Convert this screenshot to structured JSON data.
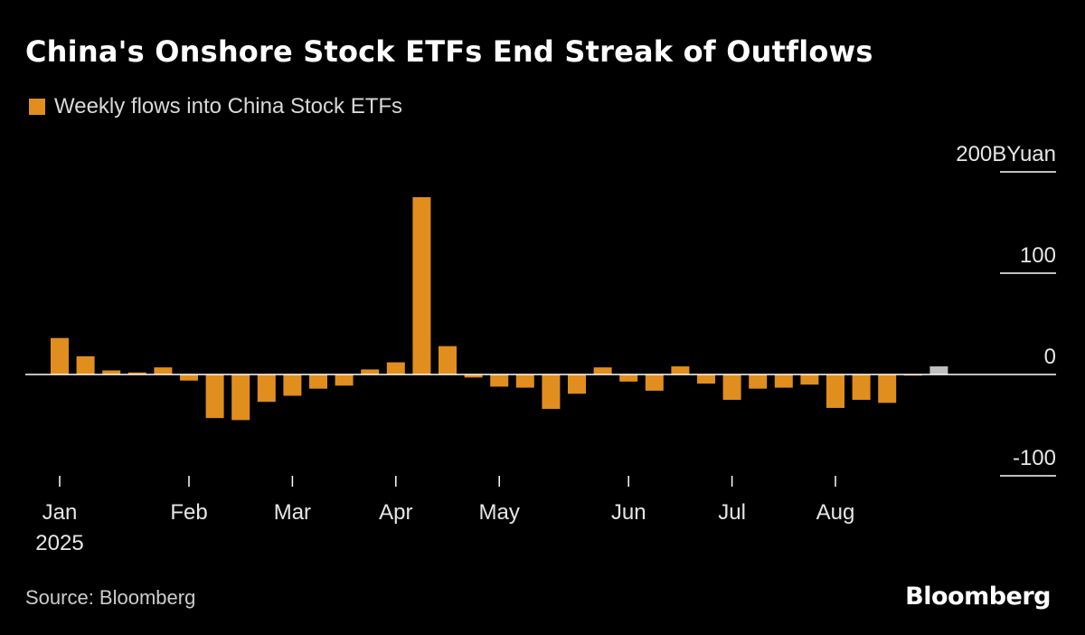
{
  "header": {
    "title": "China's Onshore Stock ETFs End Streak of Outflows"
  },
  "legend": {
    "label": "Weekly flows into China Stock ETFs",
    "color": "#e08e1e"
  },
  "footer": {
    "source": "Source: Bloomberg",
    "brand": "Bloomberg"
  },
  "colors": {
    "bar": "#e08e1e",
    "highlight": "#bfbfbf",
    "axis": "#ffffff",
    "background": "#000000"
  },
  "chart_data": {
    "type": "bar",
    "ylim": [
      -100,
      200
    ],
    "y_unit": "BYuan",
    "y_ticks": [
      {
        "value": 200,
        "label": "200BYuan"
      },
      {
        "value": 100,
        "label": "100"
      },
      {
        "value": 0,
        "label": "0"
      },
      {
        "value": -100,
        "label": "-100"
      }
    ],
    "x_ticks": [
      {
        "label": "Jan",
        "sublabel": "2025",
        "week_index": 0
      },
      {
        "label": "Feb",
        "week_index": 5
      },
      {
        "label": "Mar",
        "week_index": 9
      },
      {
        "label": "Apr",
        "week_index": 13
      },
      {
        "label": "May",
        "week_index": 17
      },
      {
        "label": "Jun",
        "week_index": 22
      },
      {
        "label": "Jul",
        "week_index": 26
      },
      {
        "label": "Aug",
        "week_index": 30
      }
    ],
    "series": [
      {
        "values": [
          36,
          18,
          4,
          2,
          7,
          -6,
          -43,
          -45,
          -27,
          -21,
          -14,
          -11,
          5,
          12,
          175,
          28,
          -3,
          -12,
          -13,
          -34,
          -19,
          7,
          -7,
          -16,
          8,
          -9,
          -25,
          -14,
          -13,
          -10,
          -33,
          -25,
          -28,
          -1,
          8
        ],
        "highlight_last": true
      }
    ],
    "grid": false,
    "legend_position": "top-left"
  }
}
